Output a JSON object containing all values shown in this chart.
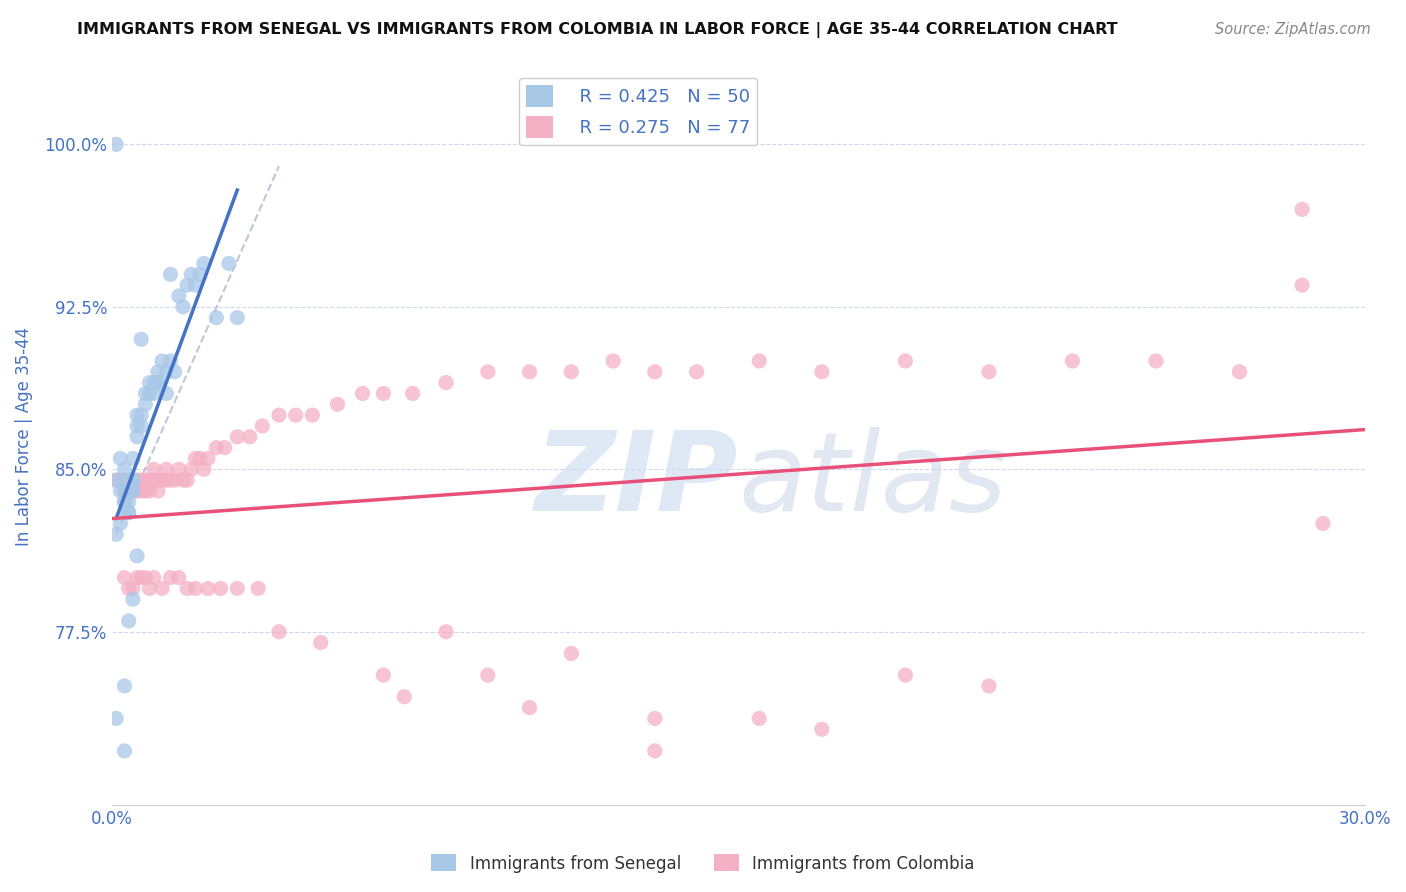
{
  "title": "IMMIGRANTS FROM SENEGAL VS IMMIGRANTS FROM COLOMBIA IN LABOR FORCE | AGE 35-44 CORRELATION CHART",
  "source": "Source: ZipAtlas.com",
  "ylabel": "In Labor Force | Age 35-44",
  "xlim": [
    0.0,
    0.3
  ],
  "ylim": [
    0.695,
    1.035
  ],
  "yticks": [
    0.775,
    0.85,
    0.925,
    1.0
  ],
  "ytick_labels": [
    "77.5%",
    "85.0%",
    "92.5%",
    "100.0%"
  ],
  "xticks": [
    0.0,
    0.05,
    0.1,
    0.15,
    0.2,
    0.25,
    0.3
  ],
  "xtick_labels": [
    "0.0%",
    "",
    "",
    "",
    "",
    "",
    "30.0%"
  ],
  "senegal_R": 0.425,
  "senegal_N": 50,
  "colombia_R": 0.275,
  "colombia_N": 77,
  "color_senegal": "#a8c8e8",
  "color_colombia": "#f4b0c4",
  "line_color_senegal": "#4472c4",
  "line_color_colombia": "#e8507a",
  "diagonal_color": "#b0b8d0",
  "text_color": "#4472c4",
  "grid_color": "#d0d8f0",
  "background_color": "#ffffff",
  "senegal_x": [
    0.001,
    0.001,
    0.002,
    0.002,
    0.002,
    0.003,
    0.003,
    0.003,
    0.003,
    0.003,
    0.003,
    0.004,
    0.004,
    0.004,
    0.004,
    0.004,
    0.005,
    0.005,
    0.005,
    0.005,
    0.005,
    0.005,
    0.006,
    0.006,
    0.006,
    0.007,
    0.007,
    0.008,
    0.008,
    0.009,
    0.009,
    0.01,
    0.01,
    0.011,
    0.011,
    0.012,
    0.013,
    0.013,
    0.014,
    0.015,
    0.016,
    0.017,
    0.018,
    0.019,
    0.02,
    0.021,
    0.022,
    0.025,
    0.028,
    0.03
  ],
  "senegal_y": [
    0.845,
    0.82,
    0.855,
    0.84,
    0.825,
    0.85,
    0.845,
    0.84,
    0.835,
    0.835,
    0.83,
    0.84,
    0.84,
    0.835,
    0.83,
    0.83,
    0.855,
    0.845,
    0.845,
    0.845,
    0.84,
    0.84,
    0.875,
    0.87,
    0.865,
    0.875,
    0.87,
    0.885,
    0.88,
    0.89,
    0.885,
    0.89,
    0.885,
    0.895,
    0.89,
    0.9,
    0.895,
    0.885,
    0.9,
    0.895,
    0.93,
    0.925,
    0.935,
    0.94,
    0.935,
    0.94,
    0.945,
    0.92,
    0.945,
    0.92
  ],
  "senegal_y_outliers": [
    1.0,
    0.735,
    0.91,
    0.89,
    0.75,
    0.72,
    0.94,
    0.78,
    0.81,
    0.79
  ],
  "senegal_x_outliers": [
    0.001,
    0.001,
    0.007,
    0.011,
    0.003,
    0.003,
    0.014,
    0.004,
    0.006,
    0.005
  ],
  "colombia_x": [
    0.001,
    0.002,
    0.003,
    0.003,
    0.004,
    0.004,
    0.005,
    0.005,
    0.005,
    0.006,
    0.006,
    0.007,
    0.007,
    0.008,
    0.008,
    0.009,
    0.009,
    0.01,
    0.01,
    0.011,
    0.011,
    0.012,
    0.013,
    0.013,
    0.014,
    0.015,
    0.016,
    0.017,
    0.018,
    0.019,
    0.02,
    0.021,
    0.022,
    0.023,
    0.025,
    0.027,
    0.03,
    0.033,
    0.036,
    0.04,
    0.044,
    0.048,
    0.054,
    0.06,
    0.065,
    0.072,
    0.08,
    0.09,
    0.1,
    0.11,
    0.12,
    0.13,
    0.14,
    0.155,
    0.17,
    0.19,
    0.21,
    0.23,
    0.25,
    0.27,
    0.003,
    0.004,
    0.005,
    0.006,
    0.007,
    0.008,
    0.009,
    0.01,
    0.012,
    0.014,
    0.016,
    0.018,
    0.02,
    0.023,
    0.026,
    0.03,
    0.035
  ],
  "colombia_y": [
    0.845,
    0.845,
    0.845,
    0.84,
    0.845,
    0.84,
    0.845,
    0.845,
    0.84,
    0.845,
    0.84,
    0.845,
    0.84,
    0.845,
    0.84,
    0.845,
    0.84,
    0.85,
    0.845,
    0.845,
    0.84,
    0.845,
    0.845,
    0.85,
    0.845,
    0.845,
    0.85,
    0.845,
    0.845,
    0.85,
    0.855,
    0.855,
    0.85,
    0.855,
    0.86,
    0.86,
    0.865,
    0.865,
    0.87,
    0.875,
    0.875,
    0.875,
    0.88,
    0.885,
    0.885,
    0.885,
    0.89,
    0.895,
    0.895,
    0.895,
    0.9,
    0.895,
    0.895,
    0.9,
    0.895,
    0.9,
    0.895,
    0.9,
    0.9,
    0.895,
    0.8,
    0.795,
    0.795,
    0.8,
    0.8,
    0.8,
    0.795,
    0.8,
    0.795,
    0.8,
    0.8,
    0.795,
    0.795,
    0.795,
    0.795,
    0.795,
    0.795
  ],
  "colombia_outliers_x": [
    0.285,
    0.285,
    0.1,
    0.155,
    0.07,
    0.09,
    0.11,
    0.05,
    0.065,
    0.04,
    0.19,
    0.13,
    0.08,
    0.13,
    0.17,
    0.21,
    0.29
  ],
  "colombia_outliers_y": [
    0.97,
    0.935,
    0.74,
    0.735,
    0.745,
    0.755,
    0.765,
    0.77,
    0.755,
    0.775,
    0.755,
    0.735,
    0.775,
    0.72,
    0.73,
    0.75,
    0.825
  ]
}
